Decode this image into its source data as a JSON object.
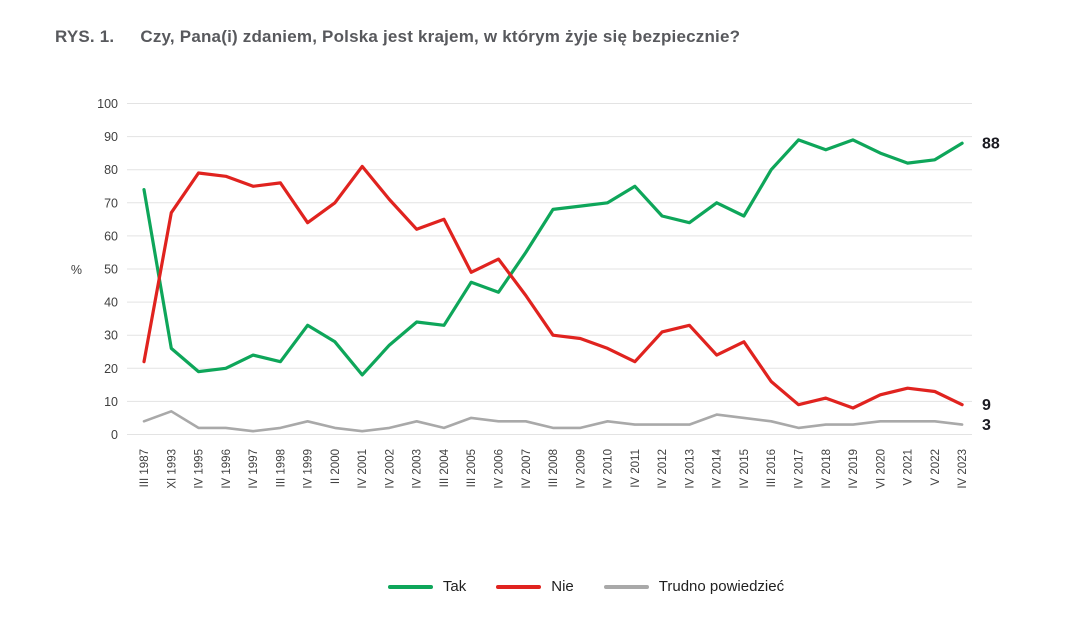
{
  "title": {
    "prefix": "RYS. 1.",
    "text": "Czy, Pana(i) zdaniem, Polska jest krajem, w którym żyje się bezpiecznie?"
  },
  "y_axis": {
    "label": "%",
    "ticks": [
      0,
      10,
      20,
      30,
      40,
      50,
      60,
      70,
      80,
      90,
      100
    ]
  },
  "legend": {
    "items": [
      {
        "key": "tak",
        "label": "Tak",
        "color": "#0ea65a"
      },
      {
        "key": "nie",
        "label": "Nie",
        "color": "#e0231f"
      },
      {
        "key": "trudno",
        "label": "Trudno powiedzieć",
        "color": "#a9a9a9"
      }
    ]
  },
  "chart_data": {
    "type": "line",
    "title": "RYS. 1. Czy, Pana(i) zdaniem, Polska jest krajem, w którym żyje się bezpiecznie?",
    "xlabel": "",
    "ylabel": "%",
    "ylim": [
      0,
      100
    ],
    "grid": "horizontal",
    "legend_position": "bottom",
    "categories": [
      "III 1987",
      "XI 1993",
      "IV 1995",
      "IV 1996",
      "IV 1997",
      "III 1998",
      "IV 1999",
      "II 2000",
      "IV 2001",
      "IV 2002",
      "IV 2003",
      "III 2004",
      "III 2005",
      "IV 2006",
      "IV 2007",
      "III 2008",
      "IV 2009",
      "IV 2010",
      "IV 2011",
      "IV 2012",
      "IV 2013",
      "IV 2014",
      "IV 2015",
      "III 2016",
      "IV 2017",
      "IV 2018",
      "IV 2019",
      "VI 2020",
      "V 2021",
      "V 2022",
      "IV 2023"
    ],
    "series": [
      {
        "key": "tak",
        "name": "Tak",
        "color": "#0ea65a",
        "end_label": "88",
        "values": [
          74,
          26,
          19,
          20,
          24,
          22,
          33,
          28,
          18,
          27,
          34,
          33,
          46,
          43,
          55,
          68,
          69,
          70,
          75,
          66,
          64,
          70,
          66,
          80,
          89,
          86,
          89,
          85,
          82,
          83,
          88
        ]
      },
      {
        "key": "nie",
        "name": "Nie",
        "color": "#e0231f",
        "end_label": "9",
        "values": [
          22,
          67,
          79,
          78,
          75,
          76,
          64,
          70,
          81,
          71,
          62,
          65,
          49,
          53,
          42,
          30,
          29,
          26,
          22,
          31,
          33,
          24,
          28,
          16,
          9,
          11,
          8,
          12,
          14,
          13,
          9
        ]
      },
      {
        "key": "trudno",
        "name": "Trudno powiedzieć",
        "color": "#a9a9a9",
        "end_label": "3",
        "values": [
          4,
          7,
          2,
          2,
          1,
          2,
          4,
          2,
          1,
          2,
          4,
          2,
          5,
          4,
          4,
          2,
          2,
          4,
          3,
          3,
          3,
          6,
          5,
          4,
          2,
          3,
          3,
          4,
          4,
          4,
          3
        ]
      }
    ]
  }
}
